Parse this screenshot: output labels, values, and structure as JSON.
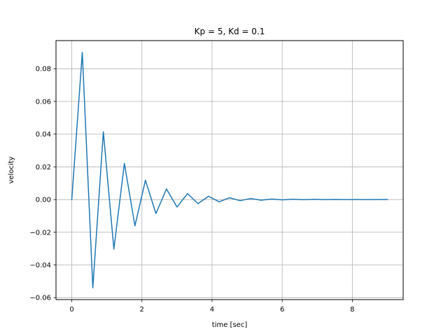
{
  "chart_data": {
    "type": "line",
    "title": "Kp = 5, Kd = 0.1",
    "xlabel": "time [sec]",
    "ylabel": "velocity",
    "xlim": [
      -0.45,
      9.45
    ],
    "ylim": [
      -0.0612,
      0.0972
    ],
    "xticks": [
      0,
      2,
      4,
      6,
      8
    ],
    "xtick_labels": [
      "0",
      "2",
      "4",
      "6",
      "8"
    ],
    "yticks": [
      -0.06,
      -0.04,
      -0.02,
      0.0,
      0.02,
      0.04,
      0.06,
      0.08
    ],
    "ytick_labels": [
      "−0.06",
      "−0.04",
      "−0.02",
      "0.00",
      "0.02",
      "0.04",
      "0.06",
      "0.08"
    ],
    "grid": true,
    "series": [
      {
        "color": "#1f77b4",
        "x": [
          0.0,
          0.3,
          0.6,
          0.9,
          1.2,
          1.5,
          1.8,
          2.1,
          2.4,
          2.7,
          3.0,
          3.3,
          3.6,
          3.9,
          4.2,
          4.5,
          4.8,
          5.1,
          5.4,
          5.7,
          6.0,
          6.3,
          6.6,
          6.9,
          7.2,
          7.5,
          7.8,
          8.1,
          8.4,
          8.7,
          9.0
        ],
        "y": [
          0.0,
          0.09,
          -0.054,
          0.0414,
          -0.0303,
          0.0221,
          -0.0161,
          0.0118,
          -0.0086,
          0.0065,
          -0.0046,
          0.0036,
          -0.0025,
          0.002,
          -0.0014,
          0.0011,
          -0.0007,
          0.0006,
          -0.0004,
          0.0003,
          -0.0002,
          0.0002,
          -0.0001,
          0.0001,
          -5e-05,
          5e-05,
          -3e-05,
          3e-05,
          -2e-05,
          1e-05,
          0.0
        ]
      }
    ]
  }
}
